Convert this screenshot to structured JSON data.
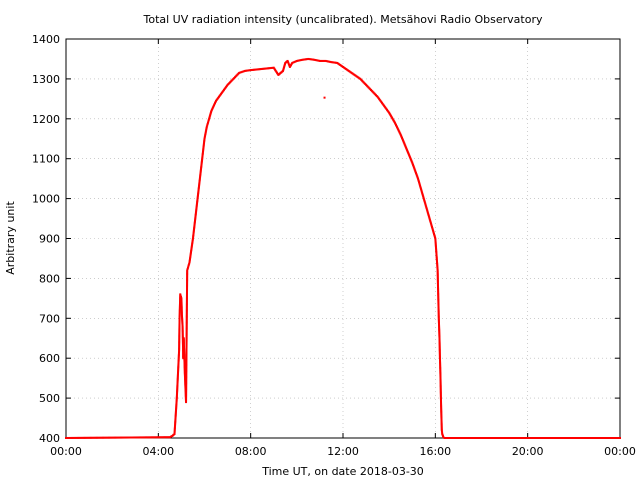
{
  "chart_data": {
    "type": "scatter",
    "title": "Total UV radiation intensity (uncalibrated). Metsähovi Radio Observatory",
    "xlabel": "Time UT, on date 2018-03-30",
    "ylabel": "Arbitrary unit",
    "xlim": [
      "00:00",
      "24:00"
    ],
    "ylim": [
      400,
      1400
    ],
    "x_ticks": [
      "00:00",
      "04:00",
      "08:00",
      "12:00",
      "16:00",
      "20:00",
      "00:00"
    ],
    "y_ticks": [
      400,
      500,
      600,
      700,
      800,
      900,
      1000,
      1100,
      1200,
      1300,
      1400
    ],
    "grid": true,
    "marker_color": "#ff0000",
    "series": [
      {
        "x_hours": [
          0.0,
          4.5,
          4.6,
          4.7,
          4.8,
          4.85,
          4.9,
          4.92,
          4.95,
          5.0,
          5.02,
          5.05,
          5.08,
          5.1,
          5.15,
          5.2,
          5.25,
          5.3,
          5.35,
          5.4,
          5.45,
          5.5,
          5.6,
          5.7,
          5.8,
          5.9,
          6.0,
          6.1,
          6.15,
          6.2,
          6.3,
          6.5,
          6.75,
          7.0,
          7.25,
          7.5,
          7.75,
          8.0,
          8.5,
          9.0,
          9.2,
          9.3,
          9.4,
          9.5,
          9.6,
          9.7,
          9.8,
          10.0,
          10.25,
          10.5,
          10.75,
          11.0,
          11.25,
          11.5,
          11.75,
          12.0,
          12.25,
          12.5,
          12.75,
          13.0,
          13.25,
          13.5,
          13.75,
          14.0,
          14.25,
          14.5,
          14.75,
          15.0,
          15.25,
          15.5,
          15.75,
          15.9,
          16.0,
          16.05,
          16.1,
          16.12,
          16.15,
          16.18,
          16.2,
          16.22,
          16.25,
          16.28,
          16.3,
          16.35,
          16.4,
          16.5,
          20.0,
          24.0
        ],
        "y": [
          400,
          402,
          405,
          410,
          500,
          560,
          620,
          700,
          760,
          750,
          710,
          680,
          600,
          650,
          560,
          490,
          820,
          830,
          840,
          860,
          880,
          900,
          950,
          1000,
          1050,
          1100,
          1150,
          1180,
          1190,
          1200,
          1220,
          1245,
          1265,
          1285,
          1300,
          1315,
          1320,
          1322,
          1325,
          1328,
          1310,
          1315,
          1320,
          1340,
          1345,
          1330,
          1340,
          1345,
          1348,
          1350,
          1348,
          1345,
          1345,
          1342,
          1340,
          1330,
          1320,
          1310,
          1300,
          1285,
          1270,
          1255,
          1235,
          1215,
          1190,
          1160,
          1125,
          1090,
          1050,
          1000,
          950,
          920,
          900,
          860,
          820,
          770,
          700,
          650,
          600,
          560,
          480,
          420,
          410,
          402,
          400,
          400,
          400,
          400
        ],
        "outliers": [
          {
            "x_hours": 11.2,
            "y": 1253
          }
        ]
      }
    ]
  }
}
